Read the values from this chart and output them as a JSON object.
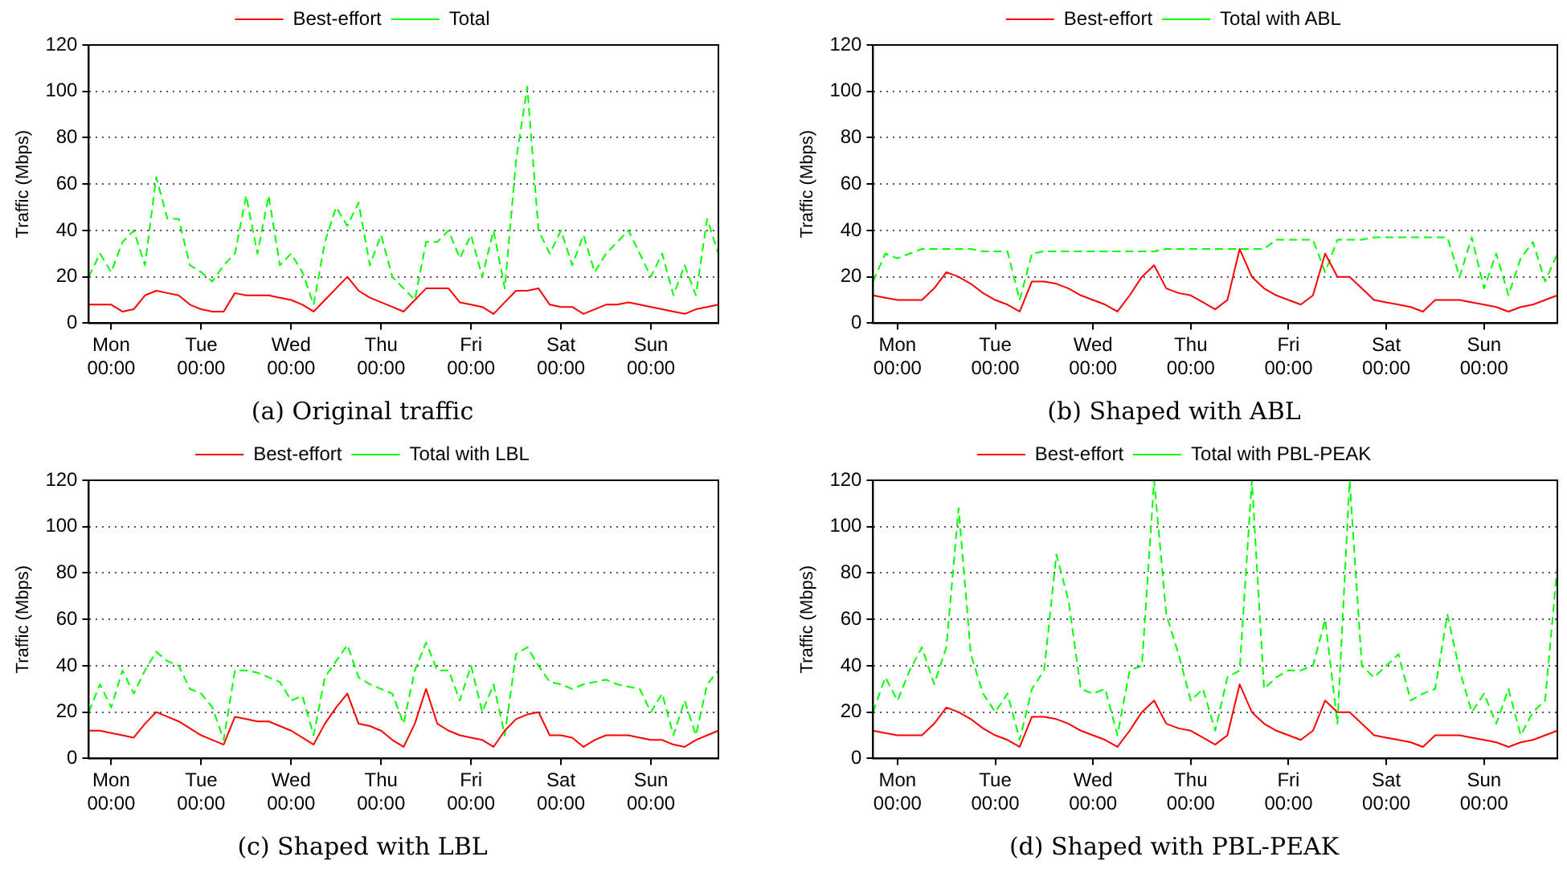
{
  "chart_data": [
    {
      "type": "line",
      "title": "(a) Original traffic",
      "ylabel": "Traffic (Mbps)",
      "categories": [
        null,
        null,
        "Mon\n00:00",
        null,
        null,
        null,
        null,
        null,
        null,
        null,
        "Tue\n00:00",
        null,
        null,
        null,
        null,
        null,
        null,
        null,
        "Wed\n00:00",
        null,
        null,
        null,
        null,
        null,
        null,
        null,
        "Thu\n00:00",
        null,
        null,
        null,
        null,
        null,
        null,
        null,
        "Fri\n00:00",
        null,
        null,
        null,
        null,
        null,
        null,
        null,
        "Sat\n00:00",
        null,
        null,
        null,
        null,
        null,
        null,
        null,
        "Sun\n00:00",
        null,
        null,
        null,
        null,
        null,
        null
      ],
      "ylim": [
        0,
        120
      ],
      "yticks": [
        0,
        20,
        40,
        60,
        80,
        100,
        120
      ],
      "grid": "y",
      "legend": "top",
      "marker": "none",
      "series": [
        {
          "name": "Best-effort",
          "color": "#ff0000",
          "line_style": "solid",
          "values": [
            8,
            8,
            8,
            5,
            6,
            12,
            14,
            13,
            12,
            8,
            6,
            5,
            5,
            13,
            12,
            12,
            12,
            11,
            10,
            8,
            5,
            10,
            15,
            20,
            14,
            11,
            9,
            7,
            5,
            10,
            15,
            15,
            15,
            9,
            8,
            7,
            4,
            9,
            14,
            14,
            15,
            8,
            7,
            7,
            4,
            6,
            8,
            8,
            9,
            8,
            7,
            6,
            5,
            4,
            6,
            7,
            8
          ]
        },
        {
          "name": "Total",
          "color": "#00ff00",
          "line_style": "dashed",
          "values": [
            20,
            30,
            22,
            35,
            40,
            25,
            63,
            45,
            45,
            25,
            22,
            18,
            25,
            30,
            55,
            30,
            55,
            25,
            30,
            22,
            8,
            35,
            50,
            42,
            52,
            25,
            38,
            20,
            15,
            10,
            35,
            35,
            40,
            28,
            38,
            20,
            40,
            15,
            70,
            102,
            40,
            30,
            40,
            25,
            38,
            22,
            30,
            35,
            40,
            30,
            20,
            30,
            12,
            25,
            12,
            45,
            30
          ]
        }
      ]
    },
    {
      "type": "line",
      "title": "(b) Shaped with ABL",
      "ylabel": "Traffic (Mbps)",
      "categories": [
        null,
        null,
        "Mon\n00:00",
        null,
        null,
        null,
        null,
        null,
        null,
        null,
        "Tue\n00:00",
        null,
        null,
        null,
        null,
        null,
        null,
        null,
        "Wed\n00:00",
        null,
        null,
        null,
        null,
        null,
        null,
        null,
        "Thu\n00:00",
        null,
        null,
        null,
        null,
        null,
        null,
        null,
        "Fri\n00:00",
        null,
        null,
        null,
        null,
        null,
        null,
        null,
        "Sat\n00:00",
        null,
        null,
        null,
        null,
        null,
        null,
        null,
        "Sun\n00:00",
        null,
        null,
        null,
        null,
        null,
        null
      ],
      "ylim": [
        0,
        120
      ],
      "yticks": [
        0,
        20,
        40,
        60,
        80,
        100,
        120
      ],
      "grid": "y",
      "legend": "top",
      "marker": "none",
      "series": [
        {
          "name": "Best-effort",
          "color": "#ff0000",
          "line_style": "solid",
          "values": [
            12,
            11,
            10,
            10,
            10,
            15,
            22,
            20,
            17,
            13,
            10,
            8,
            5,
            18,
            18,
            17,
            15,
            12,
            10,
            8,
            5,
            12,
            20,
            25,
            15,
            13,
            12,
            9,
            6,
            10,
            32,
            20,
            15,
            12,
            10,
            8,
            12,
            30,
            20,
            20,
            15,
            10,
            9,
            8,
            7,
            5,
            10,
            10,
            10,
            9,
            8,
            7,
            5,
            7,
            8,
            10,
            12
          ]
        },
        {
          "name": "Total with ABL",
          "color": "#00ff00",
          "line_style": "dashed",
          "values": [
            18,
            30,
            28,
            30,
            32,
            32,
            32,
            32,
            32,
            31,
            31,
            31,
            10,
            30,
            31,
            31,
            31,
            31,
            31,
            31,
            31,
            31,
            31,
            31,
            32,
            32,
            32,
            32,
            32,
            32,
            32,
            32,
            32,
            36,
            36,
            36,
            36,
            22,
            36,
            36,
            36,
            37,
            37,
            37,
            37,
            37,
            37,
            37,
            20,
            37,
            15,
            30,
            12,
            28,
            35,
            18,
            30
          ]
        }
      ]
    },
    {
      "type": "line",
      "title": "(c) Shaped with LBL",
      "ylabel": "Traffic (Mbps)",
      "categories": [
        null,
        null,
        "Mon\n00:00",
        null,
        null,
        null,
        null,
        null,
        null,
        null,
        "Tue\n00:00",
        null,
        null,
        null,
        null,
        null,
        null,
        null,
        "Wed\n00:00",
        null,
        null,
        null,
        null,
        null,
        null,
        null,
        "Thu\n00:00",
        null,
        null,
        null,
        null,
        null,
        null,
        null,
        "Fri\n00:00",
        null,
        null,
        null,
        null,
        null,
        null,
        null,
        "Sat\n00:00",
        null,
        null,
        null,
        null,
        null,
        null,
        null,
        "Sun\n00:00",
        null,
        null,
        null,
        null,
        null,
        null
      ],
      "ylim": [
        0,
        120
      ],
      "yticks": [
        0,
        20,
        40,
        60,
        80,
        100,
        120
      ],
      "grid": "y",
      "legend": "top",
      "marker": "none",
      "series": [
        {
          "name": "Best-effort",
          "color": "#ff0000",
          "line_style": "solid",
          "values": [
            12,
            12,
            11,
            10,
            9,
            15,
            20,
            18,
            16,
            13,
            10,
            8,
            6,
            18,
            17,
            16,
            16,
            14,
            12,
            9,
            6,
            15,
            22,
            28,
            15,
            14,
            12,
            8,
            5,
            15,
            30,
            15,
            12,
            10,
            9,
            8,
            5,
            12,
            17,
            19,
            20,
            10,
            10,
            9,
            5,
            8,
            10,
            10,
            10,
            9,
            8,
            8,
            6,
            5,
            8,
            10,
            12
          ]
        },
        {
          "name": "Total with LBL",
          "color": "#00ff00",
          "line_style": "dashed",
          "values": [
            20,
            32,
            22,
            38,
            28,
            38,
            46,
            42,
            40,
            30,
            28,
            22,
            8,
            38,
            38,
            37,
            35,
            33,
            25,
            27,
            10,
            35,
            42,
            49,
            35,
            32,
            30,
            28,
            15,
            38,
            50,
            38,
            38,
            25,
            40,
            20,
            32,
            10,
            45,
            48,
            40,
            33,
            32,
            30,
            32,
            33,
            34,
            32,
            31,
            30,
            20,
            28,
            10,
            25,
            10,
            32,
            38
          ]
        }
      ]
    },
    {
      "type": "line",
      "title": "(d) Shaped with PBL-PEAK",
      "ylabel": "Traffic (Mbps)",
      "categories": [
        null,
        null,
        "Mon\n00:00",
        null,
        null,
        null,
        null,
        null,
        null,
        null,
        "Tue\n00:00",
        null,
        null,
        null,
        null,
        null,
        null,
        null,
        "Wed\n00:00",
        null,
        null,
        null,
        null,
        null,
        null,
        null,
        "Thu\n00:00",
        null,
        null,
        null,
        null,
        null,
        null,
        null,
        "Fri\n00:00",
        null,
        null,
        null,
        null,
        null,
        null,
        null,
        "Sat\n00:00",
        null,
        null,
        null,
        null,
        null,
        null,
        null,
        "Sun\n00:00",
        null,
        null,
        null,
        null,
        null,
        null
      ],
      "ylim": [
        0,
        120
      ],
      "yticks": [
        0,
        20,
        40,
        60,
        80,
        100,
        120
      ],
      "grid": "y",
      "legend": "top",
      "marker": "none",
      "series": [
        {
          "name": "Best-effort",
          "color": "#ff0000",
          "line_style": "solid",
          "values": [
            12,
            11,
            10,
            10,
            10,
            15,
            22,
            20,
            17,
            13,
            10,
            8,
            5,
            18,
            18,
            17,
            15,
            12,
            10,
            8,
            5,
            12,
            20,
            25,
            15,
            13,
            12,
            9,
            6,
            10,
            32,
            20,
            15,
            12,
            10,
            8,
            12,
            25,
            20,
            20,
            15,
            10,
            9,
            8,
            7,
            5,
            10,
            10,
            10,
            9,
            8,
            7,
            5,
            7,
            8,
            10,
            12
          ]
        },
        {
          "name": "Total with PBL-PEAK",
          "color": "#00ff00",
          "line_style": "dashed",
          "values": [
            20,
            35,
            25,
            38,
            48,
            32,
            48,
            108,
            45,
            28,
            20,
            28,
            8,
            30,
            38,
            88,
            68,
            30,
            28,
            30,
            10,
            38,
            40,
            120,
            62,
            45,
            25,
            30,
            12,
            35,
            38,
            120,
            30,
            35,
            38,
            38,
            40,
            60,
            15,
            120,
            40,
            35,
            40,
            45,
            25,
            28,
            30,
            62,
            38,
            20,
            28,
            15,
            30,
            10,
            20,
            25,
            83
          ]
        }
      ]
    }
  ]
}
